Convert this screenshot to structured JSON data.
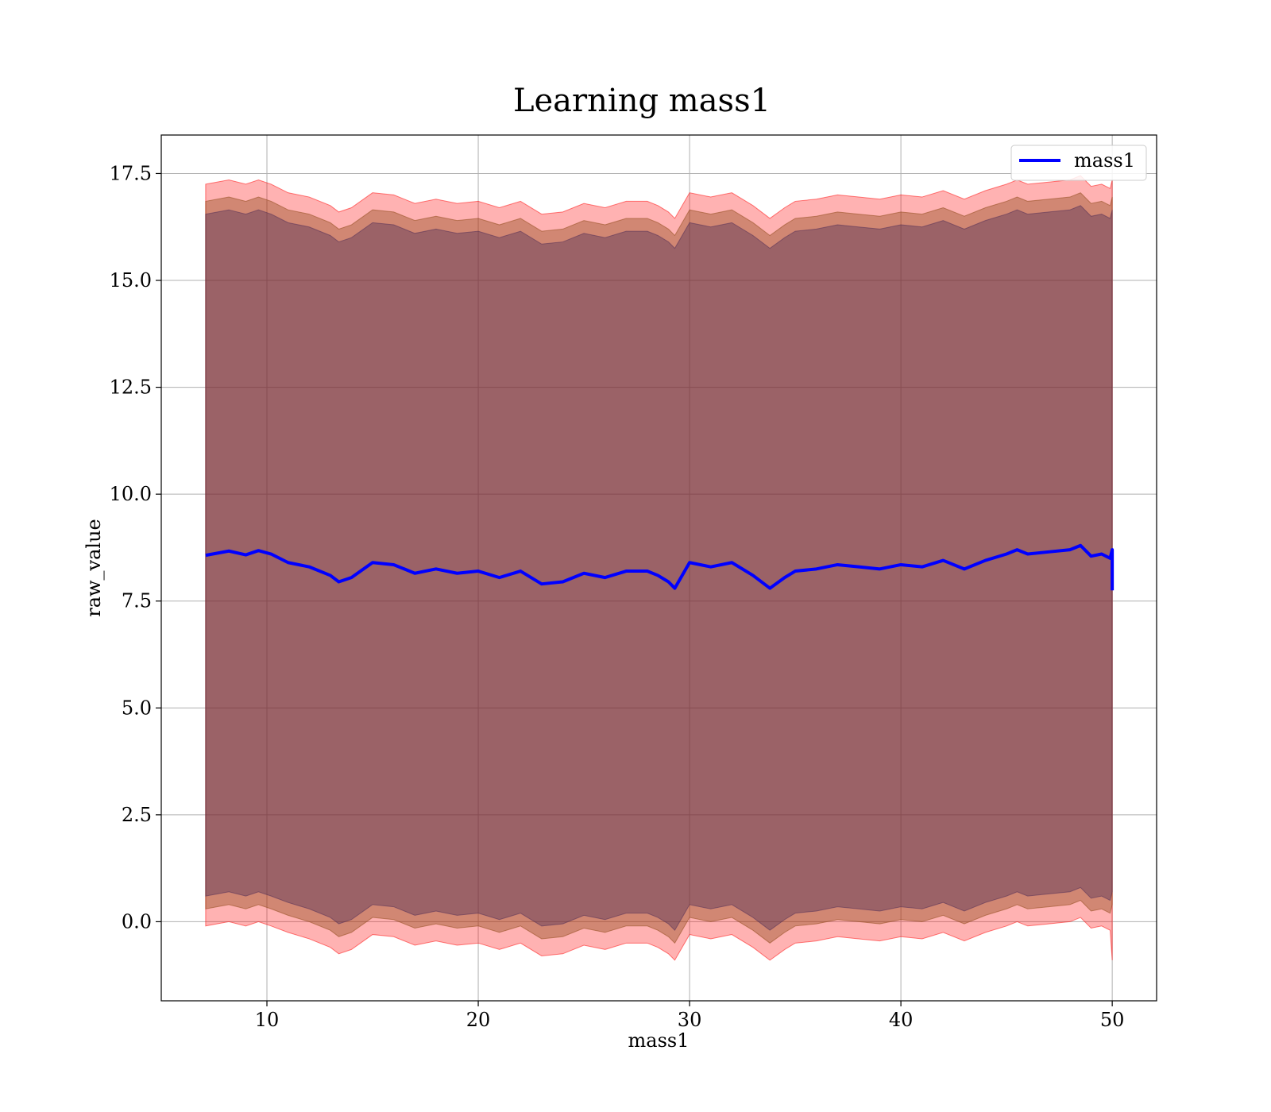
{
  "chart_data": {
    "type": "line",
    "title": "Learning mass1",
    "xlabel": "mass1",
    "ylabel": "raw_value",
    "xlim": [
      5.0,
      52.1
    ],
    "ylim": [
      -1.85,
      18.4
    ],
    "x_ticks": [
      10,
      20,
      30,
      40,
      50
    ],
    "x_tick_labels": [
      "10",
      "20",
      "30",
      "40",
      "50"
    ],
    "y_ticks": [
      0.0,
      2.5,
      5.0,
      7.5,
      10.0,
      12.5,
      15.0,
      17.5
    ],
    "y_tick_labels": [
      "0.0",
      "2.5",
      "5.0",
      "7.5",
      "10.0",
      "12.5",
      "15.0",
      "17.5"
    ],
    "grid": true,
    "legend_position": "top-right",
    "series": [
      {
        "name": "mass1",
        "color": "#0000ff",
        "x": [
          7.1,
          8.2,
          9.0,
          9.6,
          10.2,
          11.0,
          12.0,
          13.0,
          13.4,
          14.0,
          15.0,
          16.0,
          17.0,
          18.0,
          19.0,
          20.0,
          21.0,
          22.0,
          23.0,
          24.0,
          25.0,
          26.0,
          27.0,
          28.0,
          28.5,
          29.0,
          29.3,
          30.0,
          31.0,
          32.0,
          33.0,
          33.8,
          34.5,
          35.0,
          36.0,
          37.0,
          38.0,
          39.0,
          40.0,
          41.0,
          42.0,
          43.0,
          44.0,
          45.0,
          45.5,
          46.0,
          47.0,
          48.0,
          48.5,
          49.0,
          49.5,
          49.9,
          50.0,
          50.0
        ],
        "y": [
          8.57,
          8.67,
          8.58,
          8.68,
          8.6,
          8.4,
          8.3,
          8.1,
          7.95,
          8.05,
          8.4,
          8.35,
          8.15,
          8.25,
          8.15,
          8.2,
          8.05,
          8.2,
          7.9,
          7.95,
          8.15,
          8.05,
          8.2,
          8.2,
          8.1,
          7.95,
          7.8,
          8.4,
          8.3,
          8.4,
          8.1,
          7.8,
          8.05,
          8.2,
          8.25,
          8.35,
          8.3,
          8.25,
          8.35,
          8.3,
          8.45,
          8.25,
          8.45,
          8.6,
          8.7,
          8.6,
          8.65,
          8.7,
          8.8,
          8.55,
          8.6,
          8.5,
          8.7,
          7.75
        ],
        "bands": [
          {
            "label": "",
            "color": "#ff0000",
            "opacity": 0.3,
            "x": [
              7.1,
              8.2,
              9.0,
              9.6,
              10.2,
              11.0,
              12.0,
              13.0,
              13.4,
              14.0,
              15.0,
              16.0,
              17.0,
              18.0,
              19.0,
              20.0,
              21.0,
              22.0,
              23.0,
              24.0,
              25.0,
              26.0,
              27.0,
              28.0,
              28.5,
              29.0,
              29.3,
              30.0,
              31.0,
              32.0,
              33.0,
              33.8,
              34.5,
              35.0,
              36.0,
              37.0,
              38.0,
              39.0,
              40.0,
              41.0,
              42.0,
              43.0,
              44.0,
              45.0,
              45.5,
              46.0,
              47.0,
              48.0,
              48.5,
              49.0,
              49.5,
              49.9,
              50.0
            ],
            "upper": [
              17.25,
              17.35,
              17.25,
              17.35,
              17.25,
              17.05,
              16.95,
              16.75,
              16.6,
              16.7,
              17.05,
              17.0,
              16.8,
              16.9,
              16.8,
              16.85,
              16.7,
              16.85,
              16.55,
              16.6,
              16.8,
              16.7,
              16.85,
              16.85,
              16.75,
              16.6,
              16.45,
              17.05,
              16.95,
              17.05,
              16.75,
              16.45,
              16.7,
              16.85,
              16.9,
              17.0,
              16.95,
              16.9,
              17.0,
              16.95,
              17.1,
              16.9,
              17.1,
              17.25,
              17.35,
              17.25,
              17.3,
              17.35,
              17.45,
              17.2,
              17.25,
              17.15,
              17.35
            ],
            "lower": [
              -0.1,
              0.0,
              -0.1,
              0.0,
              -0.1,
              -0.25,
              -0.4,
              -0.6,
              -0.75,
              -0.65,
              -0.3,
              -0.35,
              -0.55,
              -0.45,
              -0.55,
              -0.5,
              -0.65,
              -0.5,
              -0.8,
              -0.75,
              -0.55,
              -0.65,
              -0.5,
              -0.5,
              -0.6,
              -0.75,
              -0.9,
              -0.3,
              -0.4,
              -0.3,
              -0.6,
              -0.9,
              -0.65,
              -0.5,
              -0.45,
              -0.35,
              -0.4,
              -0.45,
              -0.35,
              -0.4,
              -0.25,
              -0.45,
              -0.25,
              -0.1,
              0.0,
              -0.1,
              -0.05,
              0.0,
              0.1,
              -0.15,
              -0.1,
              -0.2,
              -0.9
            ]
          },
          {
            "label": "",
            "color": "#8b4513",
            "opacity": 0.4,
            "x": [
              7.1,
              8.2,
              9.0,
              9.6,
              10.2,
              11.0,
              12.0,
              13.0,
              13.4,
              14.0,
              15.0,
              16.0,
              17.0,
              18.0,
              19.0,
              20.0,
              21.0,
              22.0,
              23.0,
              24.0,
              25.0,
              26.0,
              27.0,
              28.0,
              28.5,
              29.0,
              29.3,
              30.0,
              31.0,
              32.0,
              33.0,
              33.8,
              34.5,
              35.0,
              36.0,
              37.0,
              38.0,
              39.0,
              40.0,
              41.0,
              42.0,
              43.0,
              44.0,
              45.0,
              45.5,
              46.0,
              47.0,
              48.0,
              48.5,
              49.0,
              49.5,
              49.9,
              50.0
            ],
            "upper": [
              16.85,
              16.95,
              16.85,
              16.95,
              16.85,
              16.65,
              16.55,
              16.35,
              16.2,
              16.3,
              16.65,
              16.6,
              16.4,
              16.5,
              16.4,
              16.45,
              16.3,
              16.45,
              16.15,
              16.2,
              16.4,
              16.3,
              16.45,
              16.45,
              16.35,
              16.2,
              16.05,
              16.65,
              16.55,
              16.65,
              16.35,
              16.05,
              16.3,
              16.45,
              16.5,
              16.6,
              16.55,
              16.5,
              16.6,
              16.55,
              16.7,
              16.5,
              16.7,
              16.85,
              16.95,
              16.85,
              16.9,
              16.95,
              17.05,
              16.8,
              16.85,
              16.75,
              16.95
            ],
            "lower": [
              0.3,
              0.4,
              0.3,
              0.4,
              0.3,
              0.15,
              0.0,
              -0.2,
              -0.35,
              -0.25,
              0.1,
              0.05,
              -0.15,
              -0.05,
              -0.15,
              -0.1,
              -0.25,
              -0.1,
              -0.4,
              -0.35,
              -0.15,
              -0.25,
              -0.1,
              -0.1,
              -0.2,
              -0.35,
              -0.5,
              0.1,
              0.0,
              0.1,
              -0.2,
              -0.5,
              -0.25,
              -0.1,
              -0.05,
              0.05,
              0.0,
              -0.05,
              0.05,
              0.0,
              0.15,
              -0.05,
              0.15,
              0.3,
              0.4,
              0.3,
              0.35,
              0.4,
              0.5,
              0.25,
              0.3,
              0.2,
              0.4
            ]
          },
          {
            "label": "",
            "color": "#4b2a56",
            "opacity": 0.4,
            "x": [
              7.1,
              8.2,
              9.0,
              9.6,
              10.2,
              11.0,
              12.0,
              13.0,
              13.4,
              14.0,
              15.0,
              16.0,
              17.0,
              18.0,
              19.0,
              20.0,
              21.0,
              22.0,
              23.0,
              24.0,
              25.0,
              26.0,
              27.0,
              28.0,
              28.5,
              29.0,
              29.3,
              30.0,
              31.0,
              32.0,
              33.0,
              33.8,
              34.5,
              35.0,
              36.0,
              37.0,
              38.0,
              39.0,
              40.0,
              41.0,
              42.0,
              43.0,
              44.0,
              45.0,
              45.5,
              46.0,
              47.0,
              48.0,
              48.5,
              49.0,
              49.5,
              49.9,
              50.0
            ],
            "upper": [
              16.55,
              16.65,
              16.55,
              16.65,
              16.55,
              16.35,
              16.25,
              16.05,
              15.9,
              16.0,
              16.35,
              16.3,
              16.1,
              16.2,
              16.1,
              16.15,
              16.0,
              16.15,
              15.85,
              15.9,
              16.1,
              16.0,
              16.15,
              16.15,
              16.05,
              15.9,
              15.75,
              16.35,
              16.25,
              16.35,
              16.05,
              15.75,
              16.0,
              16.15,
              16.2,
              16.3,
              16.25,
              16.2,
              16.3,
              16.25,
              16.4,
              16.2,
              16.4,
              16.55,
              16.65,
              16.55,
              16.6,
              16.65,
              16.75,
              16.5,
              16.55,
              16.45,
              16.65
            ],
            "lower": [
              0.6,
              0.7,
              0.6,
              0.7,
              0.6,
              0.45,
              0.3,
              0.1,
              -0.05,
              0.05,
              0.4,
              0.35,
              0.15,
              0.25,
              0.15,
              0.2,
              0.05,
              0.2,
              -0.1,
              -0.05,
              0.15,
              0.05,
              0.2,
              0.2,
              0.1,
              -0.05,
              -0.2,
              0.4,
              0.3,
              0.4,
              0.1,
              -0.2,
              0.05,
              0.2,
              0.25,
              0.35,
              0.3,
              0.25,
              0.35,
              0.3,
              0.45,
              0.25,
              0.45,
              0.6,
              0.7,
              0.6,
              0.65,
              0.7,
              0.8,
              0.55,
              0.6,
              0.5,
              0.7
            ]
          }
        ]
      }
    ],
    "legend": [
      {
        "label": "mass1",
        "color": "#0000ff"
      }
    ]
  }
}
